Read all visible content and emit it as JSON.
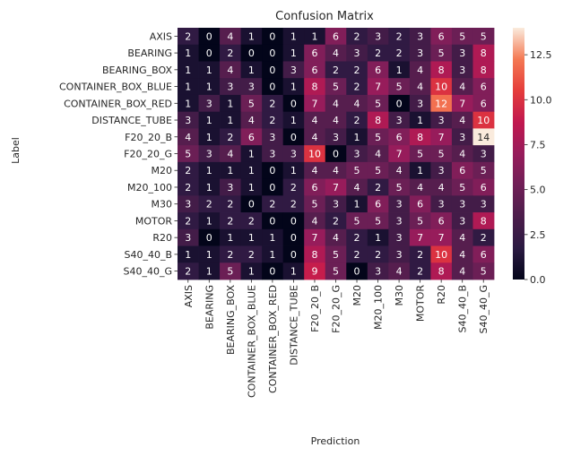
{
  "chart_data": {
    "type": "heatmap",
    "title": "Confusion Matrix",
    "xlabel": "Prediction",
    "ylabel": "Label",
    "x_categories": [
      "AXIS",
      "BEARING",
      "BEARING_BOX",
      "CONTAINER_BOX_BLUE",
      "CONTAINER_BOX_RED",
      "DISTANCE_TUBE",
      "F20_20_B",
      "F20_20_G",
      "M20",
      "M20_100",
      "M30",
      "MOTOR",
      "R20",
      "S40_40_B",
      "S40_40_G"
    ],
    "y_categories": [
      "AXIS",
      "BEARING",
      "BEARING_BOX",
      "CONTAINER_BOX_BLUE",
      "CONTAINER_BOX_RED",
      "DISTANCE_TUBE",
      "F20_20_B",
      "F20_20_G",
      "M20",
      "M20_100",
      "M30",
      "MOTOR",
      "R20",
      "S40_40_B",
      "S40_40_G"
    ],
    "values": [
      [
        2,
        0,
        4,
        1,
        0,
        1,
        1,
        6,
        2,
        3,
        2,
        3,
        6,
        5,
        5
      ],
      [
        1,
        0,
        2,
        0,
        0,
        1,
        6,
        4,
        3,
        2,
        2,
        3,
        5,
        3,
        8
      ],
      [
        1,
        1,
        4,
        1,
        0,
        3,
        6,
        2,
        2,
        6,
        1,
        4,
        8,
        3,
        8
      ],
      [
        1,
        1,
        3,
        3,
        0,
        1,
        8,
        5,
        2,
        7,
        5,
        4,
        10,
        4,
        6
      ],
      [
        1,
        3,
        1,
        5,
        2,
        0,
        7,
        4,
        4,
        5,
        0,
        3,
        12,
        7,
        6
      ],
      [
        3,
        1,
        1,
        4,
        2,
        1,
        4,
        4,
        2,
        8,
        3,
        1,
        3,
        4,
        10
      ],
      [
        4,
        1,
        2,
        6,
        3,
        0,
        4,
        3,
        1,
        5,
        6,
        8,
        7,
        3,
        14
      ],
      [
        5,
        3,
        4,
        1,
        3,
        3,
        10,
        0,
        3,
        4,
        7,
        5,
        5,
        4,
        3
      ],
      [
        2,
        1,
        1,
        1,
        0,
        1,
        4,
        4,
        5,
        5,
        4,
        1,
        3,
        6,
        5
      ],
      [
        2,
        1,
        3,
        1,
        0,
        2,
        6,
        7,
        4,
        2,
        5,
        4,
        4,
        5,
        6
      ],
      [
        3,
        2,
        2,
        0,
        2,
        2,
        5,
        3,
        1,
        6,
        3,
        6,
        3,
        3,
        3
      ],
      [
        2,
        1,
        2,
        2,
        0,
        0,
        4,
        2,
        5,
        5,
        3,
        5,
        6,
        3,
        8
      ],
      [
        3,
        0,
        1,
        1,
        1,
        0,
        7,
        4,
        2,
        1,
        3,
        7,
        7,
        4,
        2
      ],
      [
        1,
        1,
        2,
        2,
        1,
        0,
        8,
        5,
        2,
        2,
        3,
        2,
        10,
        4,
        6
      ],
      [
        2,
        1,
        5,
        1,
        0,
        1,
        9,
        5,
        0,
        3,
        4,
        2,
        8,
        4,
        5
      ]
    ],
    "vmin": 0,
    "vmax": 14,
    "colormap": "rocket",
    "colorbar_ticks": [
      "0.0",
      "2.5",
      "5.0",
      "7.5",
      "10.0",
      "12.5"
    ],
    "colorbar_tick_values": [
      0,
      2.5,
      5,
      7.5,
      10,
      12.5
    ],
    "annotations": true,
    "grid": false
  }
}
